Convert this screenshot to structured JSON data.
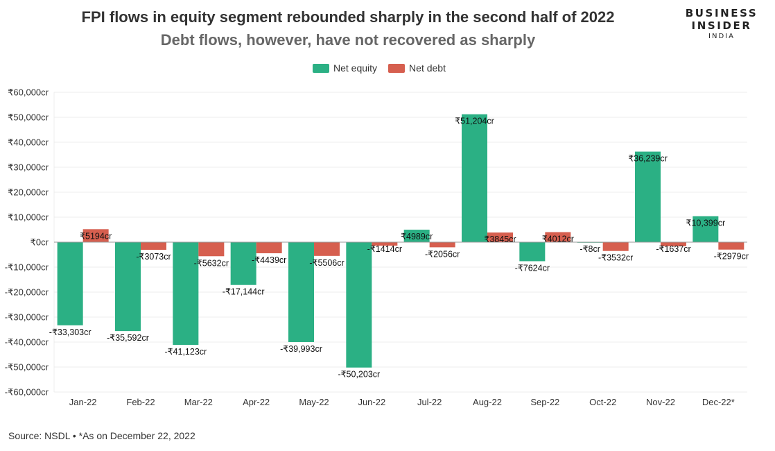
{
  "header": {
    "title": "FPI flows in equity segment rebounded sharply in the second half of 2022",
    "subtitle": "Debt flows, however, have not recovered as sharply"
  },
  "brand": {
    "line1": "BUSINESS",
    "line2": "INSIDER",
    "line3": "INDIA"
  },
  "footer": {
    "source": "Source: NSDL • *As on December 22, 2022"
  },
  "colors": {
    "equity": "#2bb084",
    "debt": "#d65f4f",
    "grid": "#ececec",
    "axis": "#999999"
  },
  "chart_data": {
    "type": "bar",
    "title": "FPI flows in equity segment rebounded sharply in the second half of 2022",
    "subtitle": "Debt flows, however, have not recovered as sharply",
    "categories": [
      "Jan-22",
      "Feb-22",
      "Mar-22",
      "Apr-22",
      "May-22",
      "Jun-22",
      "Jul-22",
      "Aug-22",
      "Sep-22",
      "Oct-22",
      "Nov-22",
      "Dec-22*"
    ],
    "series": [
      {
        "name": "Net equity",
        "values": [
          -33303,
          -35592,
          -41123,
          -17144,
          -39993,
          -50203,
          4989,
          51204,
          -7624,
          -8,
          36239,
          10399
        ],
        "labels": [
          "-₹33,303cr",
          "-₹35,592cr",
          "-₹41,123cr",
          "-₹17,144cr",
          "-₹39,993cr",
          "-₹50,203cr",
          "₹4989cr",
          "₹51,204cr",
          "-₹7624cr",
          "-₹8cr",
          "₹36,239cr",
          "₹10,399cr"
        ]
      },
      {
        "name": "Net debt",
        "values": [
          5194,
          -3073,
          -5632,
          -4439,
          -5506,
          -1414,
          -2056,
          3845,
          4012,
          -3532,
          -1637,
          -2979
        ],
        "labels": [
          "₹5194cr",
          "-₹3073cr",
          "-₹5632cr",
          "-₹4439cr",
          "-₹5506cr",
          "-₹1414cr",
          "-₹2056cr",
          "₹3845cr",
          "₹4012cr",
          "-₹3532cr",
          "-₹1637cr",
          "-₹2979cr"
        ]
      }
    ],
    "ylim": [
      -60000,
      60000
    ],
    "yticks": [
      60000,
      50000,
      40000,
      30000,
      20000,
      10000,
      0,
      -10000,
      -20000,
      -30000,
      -40000,
      -50000,
      -60000
    ],
    "ytick_labels": [
      "₹60,000cr",
      "₹50,000cr",
      "₹40,000cr",
      "₹30,000cr",
      "₹20,000cr",
      "₹10,000cr",
      "₹0cr",
      "-₹10,000cr",
      "-₹20,000cr",
      "-₹30,000cr",
      "-₹40,000cr",
      "-₹50,000cr",
      "-₹60,000cr"
    ],
    "grid": true,
    "legend_position": "top-center"
  }
}
